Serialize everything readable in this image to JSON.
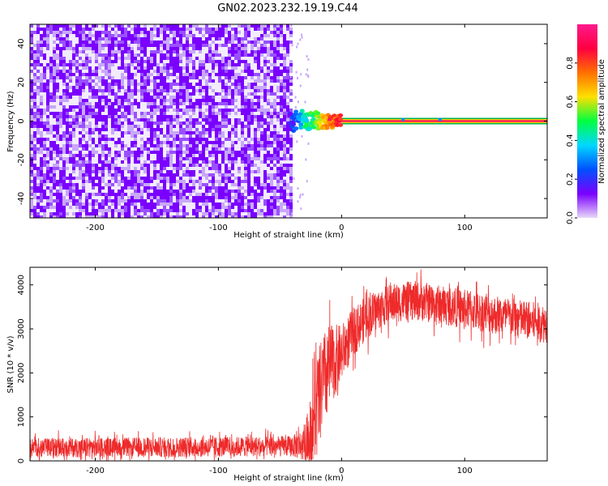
{
  "figure": {
    "title": "GN02.2023.232.19.19.C44"
  },
  "chart_data": [
    {
      "type": "heatmap",
      "xlabel": "Height of straight line (km)",
      "ylabel": "Frequency (Hz)",
      "xlim": [
        -253,
        167
      ],
      "ylim": [
        -50,
        50
      ],
      "xticks": [
        -200,
        -100,
        0,
        100
      ],
      "yticks": [
        -40,
        -20,
        0,
        20,
        40
      ],
      "grid": false,
      "colorbar": {
        "label": "Normalized spectral amplitude",
        "range": [
          0,
          1
        ],
        "ticks": [
          0.0,
          0.2,
          0.4,
          0.6,
          0.8
        ],
        "colormap": [
          "#e8d8f8",
          "#7a00ff",
          "#0050ff",
          "#00d8ff",
          "#00ff40",
          "#ffe000",
          "#ff7000",
          "#ff0040",
          "#ff1a8c"
        ]
      },
      "noise_region": {
        "x": [
          -253,
          -42
        ],
        "y": [
          -50,
          50
        ],
        "amplitude": [
          0.0,
          0.15
        ]
      },
      "signal": [
        {
          "x": -42,
          "y": 0,
          "amplitude": 0.2
        },
        {
          "x": -36,
          "y": 1,
          "amplitude": 0.35
        },
        {
          "x": -30,
          "y": 0,
          "amplitude": 0.5
        },
        {
          "x": -25,
          "y": 1,
          "amplitude": 0.55
        },
        {
          "x": -20,
          "y": 0,
          "amplitude": 0.6
        },
        {
          "x": -15,
          "y": 0,
          "amplitude": 0.75
        },
        {
          "x": -10,
          "y": 0,
          "amplitude": 0.8
        },
        {
          "x": -5,
          "y": 0,
          "amplitude": 0.85
        },
        {
          "x": 0,
          "y": 0,
          "amplitude": 0.95
        },
        {
          "x": 167,
          "y": 0,
          "amplitude": 0.95
        }
      ]
    },
    {
      "type": "line",
      "xlabel": "Height of straight line (km)",
      "ylabel": "SNR (10 * v/v)",
      "xlim": [
        -253,
        167
      ],
      "ylim": [
        0,
        4400
      ],
      "xticks": [
        -200,
        -100,
        0,
        100
      ],
      "yticks": [
        0,
        1000,
        2000,
        3000,
        4000
      ],
      "grid": false,
      "series": [
        {
          "color": "#ee2a2a",
          "x": [
            -253,
            -200,
            -150,
            -100,
            -60,
            -40,
            -30,
            -25,
            -20,
            -15,
            -10,
            -5,
            0,
            5,
            10,
            20,
            30,
            40,
            50,
            60,
            70,
            80,
            90,
            100,
            110,
            120,
            130,
            140,
            150,
            160,
            167
          ],
          "y": [
            300,
            300,
            310,
            320,
            330,
            330,
            380,
            600,
            1200,
            1800,
            2100,
            2300,
            2450,
            2700,
            2950,
            3250,
            3450,
            3580,
            3620,
            3640,
            3600,
            3550,
            3500,
            3450,
            3400,
            3350,
            3300,
            3250,
            3200,
            3150,
            3120
          ],
          "spread": [
            220,
            220,
            230,
            230,
            230,
            240,
            400,
            900,
            1200,
            1100,
            1000,
            800,
            650,
            600,
            550,
            500,
            450,
            450,
            450,
            450,
            450,
            450,
            450,
            450,
            450,
            450,
            450,
            450,
            450,
            450,
            450
          ]
        }
      ]
    }
  ]
}
